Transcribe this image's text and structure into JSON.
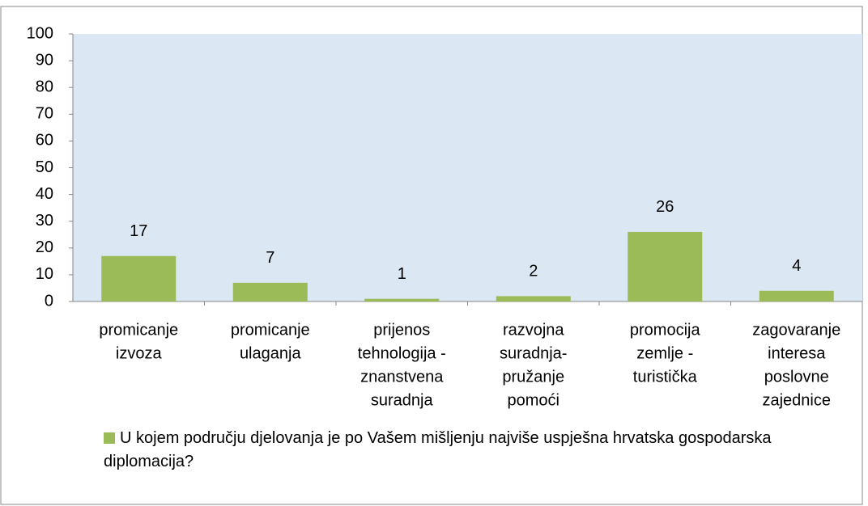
{
  "chart_data": {
    "type": "bar",
    "categories": [
      [
        "promicanje",
        "izvoza"
      ],
      [
        "promicanje",
        "ulaganja"
      ],
      [
        "prijenos",
        "tehnologija -",
        "znanstvena",
        "suradnja"
      ],
      [
        "razvojna",
        "suradnja-",
        "pružanje",
        "pomoći"
      ],
      [
        "promocija",
        "zemlje -",
        "turistička"
      ],
      [
        "zagovaranje",
        "interesa",
        "poslovne",
        "zajednice"
      ]
    ],
    "series": [
      {
        "name": "U kojem području djelovanja je po Vašem mišljenju najviše uspješna hrvatska gospodarska diplomacija?",
        "color": "#9bbb59",
        "values": [
          17,
          7,
          1,
          2,
          26,
          4
        ]
      }
    ],
    "ylim": [
      0,
      100
    ],
    "yticks": [
      0,
      10,
      20,
      30,
      40,
      50,
      60,
      70,
      80,
      90,
      100
    ],
    "plot_background": "#dbe8f3",
    "legend": "bottom"
  }
}
